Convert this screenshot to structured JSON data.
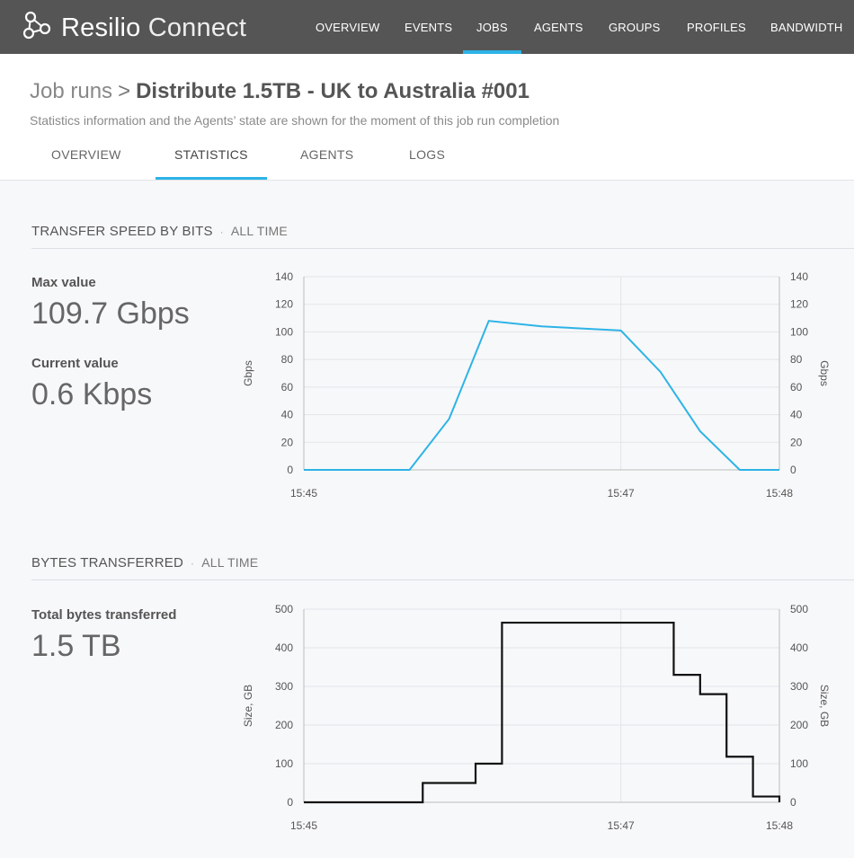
{
  "app": {
    "name_part1": "Resilio",
    "name_part2": "Connect"
  },
  "nav": {
    "items": [
      {
        "label": "OVERVIEW",
        "active": false
      },
      {
        "label": "EVENTS",
        "active": false
      },
      {
        "label": "JOBS",
        "active": true
      },
      {
        "label": "AGENTS",
        "active": false
      },
      {
        "label": "GROUPS",
        "active": false
      },
      {
        "label": "PROFILES",
        "active": false
      },
      {
        "label": "BANDWIDTH",
        "active": false
      }
    ]
  },
  "header": {
    "breadcrumb_parent": "Job runs",
    "breadcrumb_separator": ">",
    "title": "Distribute 1.5TB - UK to Australia #001",
    "subtitle": "Statistics information and the Agents’ state are shown for the moment of this job run completion"
  },
  "tabs": [
    {
      "label": "OVERVIEW",
      "active": false
    },
    {
      "label": "STATISTICS",
      "active": true
    },
    {
      "label": "AGENTS",
      "active": false
    },
    {
      "label": "LOGS",
      "active": false
    }
  ],
  "speed_section": {
    "heading": "TRANSFER SPEED BY BITS",
    "separator": "·",
    "range": "ALL TIME",
    "max_label": "Max value",
    "max_value": "109.7 Gbps",
    "current_label": "Current value",
    "current_value": "0.6 Kbps"
  },
  "bytes_section": {
    "heading": "BYTES TRANSFERRED",
    "separator": "·",
    "range": "ALL TIME",
    "total_label": "Total bytes transferred",
    "total_value": "1.5 TB"
  },
  "colors": {
    "accent": "#2db3e6",
    "topbar": "#555555",
    "step_line": "#111111"
  },
  "chart_data": [
    {
      "type": "line",
      "ylabel": "Gbps",
      "ylabel_right": "Gbps",
      "ylim": [
        0,
        140
      ],
      "yticks": [
        0,
        20,
        40,
        60,
        80,
        100,
        120,
        140
      ],
      "xlim": [
        "15:45",
        "15:48"
      ],
      "xticks": [
        "15:45",
        "15:47",
        "15:48"
      ],
      "x": [
        "15:45:00",
        "15:45:40",
        "15:45:55",
        "15:46:10",
        "15:46:30",
        "15:47:00",
        "15:47:15",
        "15:47:30",
        "15:47:45",
        "15:48:00",
        "15:48:15"
      ],
      "series": [
        {
          "values": [
            0,
            0,
            37,
            108,
            104,
            101,
            71,
            28,
            0,
            0,
            0
          ]
        }
      ],
      "grid": true,
      "color": "#2db3e6"
    },
    {
      "type": "line",
      "step": true,
      "ylabel": "Size, GB",
      "ylabel_right": "Size, GB",
      "ylim": [
        0,
        500
      ],
      "yticks": [
        0,
        100,
        200,
        300,
        400,
        500
      ],
      "xlim": [
        "15:45",
        "15:48"
      ],
      "xticks": [
        "15:45",
        "15:47",
        "15:48"
      ],
      "x": [
        "15:45:00",
        "15:45:45",
        "15:46:05",
        "15:46:15",
        "15:47:20",
        "15:47:30",
        "15:47:40",
        "15:47:50",
        "15:48:00",
        "15:48:10"
      ],
      "series": [
        {
          "values": [
            0,
            50,
            100,
            465,
            330,
            280,
            118,
            15,
            0,
            0
          ]
        }
      ],
      "grid": true,
      "color": "#111111"
    }
  ]
}
